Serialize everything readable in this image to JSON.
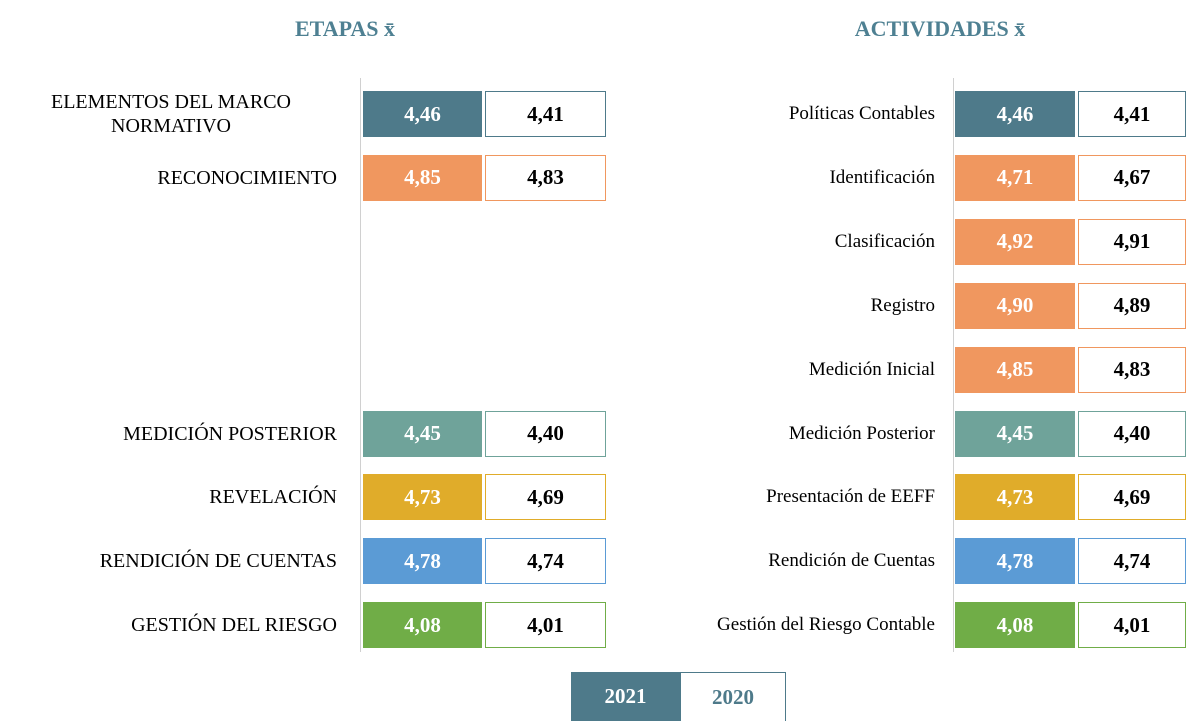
{
  "legend": {
    "first": {
      "label": "2021",
      "color": "#4e7a8a"
    },
    "second": {
      "label": "2020"
    }
  },
  "etapas": {
    "title": "ETAPAS x̄",
    "rows": [
      {
        "label": [
          "ELEMENTOS DEL MARCO",
          "NORMATIVO"
        ],
        "v2021": "4,46",
        "v2020": "4,41",
        "color": "#4e7a8a"
      },
      {
        "label": [
          "RECONOCIMIENTO"
        ],
        "v2021": "4,85",
        "v2020": "4,83",
        "color": "#f0975f"
      },
      {
        "label": [
          "MEDICIÓN POSTERIOR"
        ],
        "v2021": "4,45",
        "v2020": "4,40",
        "color": "#6fa39a"
      },
      {
        "label": [
          "REVELACIÓN"
        ],
        "v2021": "4,73",
        "v2020": "4,69",
        "color": "#e0ac2a"
      },
      {
        "label": [
          "RENDICIÓN DE CUENTAS"
        ],
        "v2021": "4,78",
        "v2020": "4,74",
        "color": "#5b9bd5"
      },
      {
        "label": [
          "GESTIÓN DEL RIESGO"
        ],
        "v2021": "4,08",
        "v2020": "4,01",
        "color": "#70ad47"
      }
    ]
  },
  "actividades": {
    "title": "ACTIVIDADES x̄",
    "rows": [
      {
        "label": [
          "Políticas Contables"
        ],
        "v2021": "4,46",
        "v2020": "4,41",
        "color": "#4e7a8a"
      },
      {
        "label": [
          "Identificación"
        ],
        "v2021": "4,71",
        "v2020": "4,67",
        "color": "#f0975f"
      },
      {
        "label": [
          "Clasificación"
        ],
        "v2021": "4,92",
        "v2020": "4,91",
        "color": "#f0975f"
      },
      {
        "label": [
          "Registro"
        ],
        "v2021": "4,90",
        "v2020": "4,89",
        "color": "#f0975f"
      },
      {
        "label": [
          "Medición Inicial"
        ],
        "v2021": "4,85",
        "v2020": "4,83",
        "color": "#f0975f"
      },
      {
        "label": [
          "Medición Posterior"
        ],
        "v2021": "4,45",
        "v2020": "4,40",
        "color": "#6fa39a"
      },
      {
        "label": [
          "Presentación de EEFF"
        ],
        "v2021": "4,73",
        "v2020": "4,69",
        "color": "#e0ac2a"
      },
      {
        "label": [
          "Rendición de Cuentas"
        ],
        "v2021": "4,78",
        "v2020": "4,74",
        "color": "#5b9bd5"
      },
      {
        "label": [
          "Gestión del Riesgo Contable"
        ],
        "v2021": "4,08",
        "v2020": "4,01",
        "color": "#70ad47"
      }
    ]
  }
}
